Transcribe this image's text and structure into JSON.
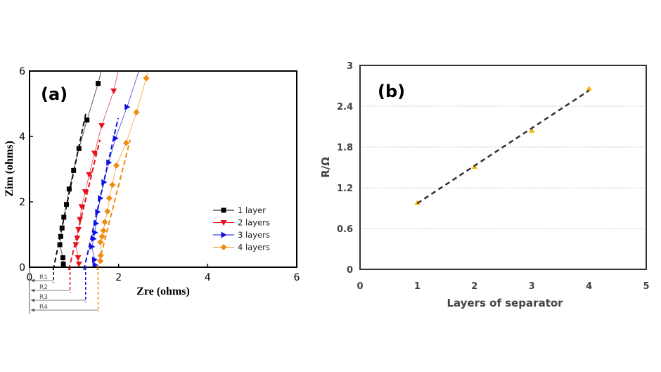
{
  "chart_data": [
    {
      "panel": "(a)",
      "type": "scatter",
      "xlabel": "Zre (ohms)",
      "ylabel": "Zim (ohms)",
      "xlim": [
        0,
        6
      ],
      "ylim": [
        0,
        6
      ],
      "xticks": [
        "0",
        "2",
        "4",
        "6"
      ],
      "yticks": [
        "0",
        "2",
        "4",
        "6"
      ],
      "legend_position": "center-right",
      "series": [
        {
          "name": "1 layer",
          "color": "#000000",
          "marker": "square",
          "x": [
            0.76,
            0.75,
            0.68,
            0.7,
            0.73,
            0.77,
            0.83,
            0.89,
            0.99,
            1.11,
            1.29,
            1.54,
            1.61
          ],
          "y": [
            0.1,
            0.29,
            0.69,
            0.94,
            1.2,
            1.53,
            1.92,
            2.39,
            2.96,
            3.63,
            4.5,
            5.62,
            6.0
          ],
          "fit": [
            [
              0.53,
              0
            ],
            [
              1.27,
              4.74
            ]
          ]
        },
        {
          "name": "2 layers",
          "color": "#e8101a",
          "marker": "triangle-down",
          "x": [
            1.11,
            1.09,
            1.04,
            1.07,
            1.1,
            1.13,
            1.17,
            1.25,
            1.34,
            1.46,
            1.62,
            1.89,
            1.99
          ],
          "y": [
            0.1,
            0.29,
            0.69,
            0.89,
            1.15,
            1.46,
            1.85,
            2.31,
            2.83,
            3.49,
            4.33,
            5.39,
            6.0
          ],
          "fit": [
            [
              0.88,
              0
            ],
            [
              1.58,
              3.9
            ]
          ]
        },
        {
          "name": "3 layers",
          "color": "#1010e0",
          "marker": "triangle-right",
          "x": [
            1.47,
            1.46,
            1.4,
            1.44,
            1.47,
            1.49,
            1.53,
            1.59,
            1.67,
            1.78,
            1.93,
            2.19,
            2.45
          ],
          "y": [
            0.07,
            0.23,
            0.63,
            0.87,
            1.06,
            1.34,
            1.69,
            2.11,
            2.6,
            3.2,
            3.94,
            4.9,
            5.98
          ],
          "fit": [
            [
              1.22,
              0
            ],
            [
              1.99,
              4.56
            ]
          ]
        },
        {
          "name": "4 layers",
          "color": "#f08a10",
          "marker": "diamond",
          "x": [
            1.59,
            1.6,
            1.59,
            1.63,
            1.66,
            1.69,
            1.75,
            1.79,
            1.86,
            1.95,
            2.17,
            2.4,
            2.62,
            2.66
          ],
          "y": [
            0.19,
            0.36,
            0.77,
            0.94,
            1.12,
            1.38,
            1.71,
            2.11,
            2.52,
            3.11,
            3.8,
            4.74,
            5.78,
            6.0
          ],
          "fit": [
            [
              1.52,
              0
            ],
            [
              2.26,
              3.9
            ]
          ]
        }
      ],
      "annotations": [
        {
          "label": "R1",
          "x": 0.54
        },
        {
          "label": "R2",
          "x": 0.91
        },
        {
          "label": "R3",
          "x": 1.26
        },
        {
          "label": "R4",
          "x": 1.54
        }
      ]
    },
    {
      "panel": "(b)",
      "type": "scatter",
      "xlabel": "Layers of separator",
      "ylabel": "R/Ω",
      "xlim": [
        0,
        5
      ],
      "ylim": [
        0,
        3
      ],
      "xticks": [
        "0",
        "1",
        "2",
        "3",
        "4",
        "5"
      ],
      "yticks": [
        "0",
        "0.6",
        "1.2",
        "1.8",
        "2.4",
        "3"
      ],
      "grid": true,
      "series": [
        {
          "name": "R",
          "color": "#f5b400",
          "x": [
            1,
            2,
            3,
            4
          ],
          "y": [
            0.98,
            1.51,
            2.04,
            2.66
          ]
        }
      ],
      "fit": [
        [
          1,
          0.97
        ],
        [
          4,
          2.63
        ]
      ]
    }
  ]
}
